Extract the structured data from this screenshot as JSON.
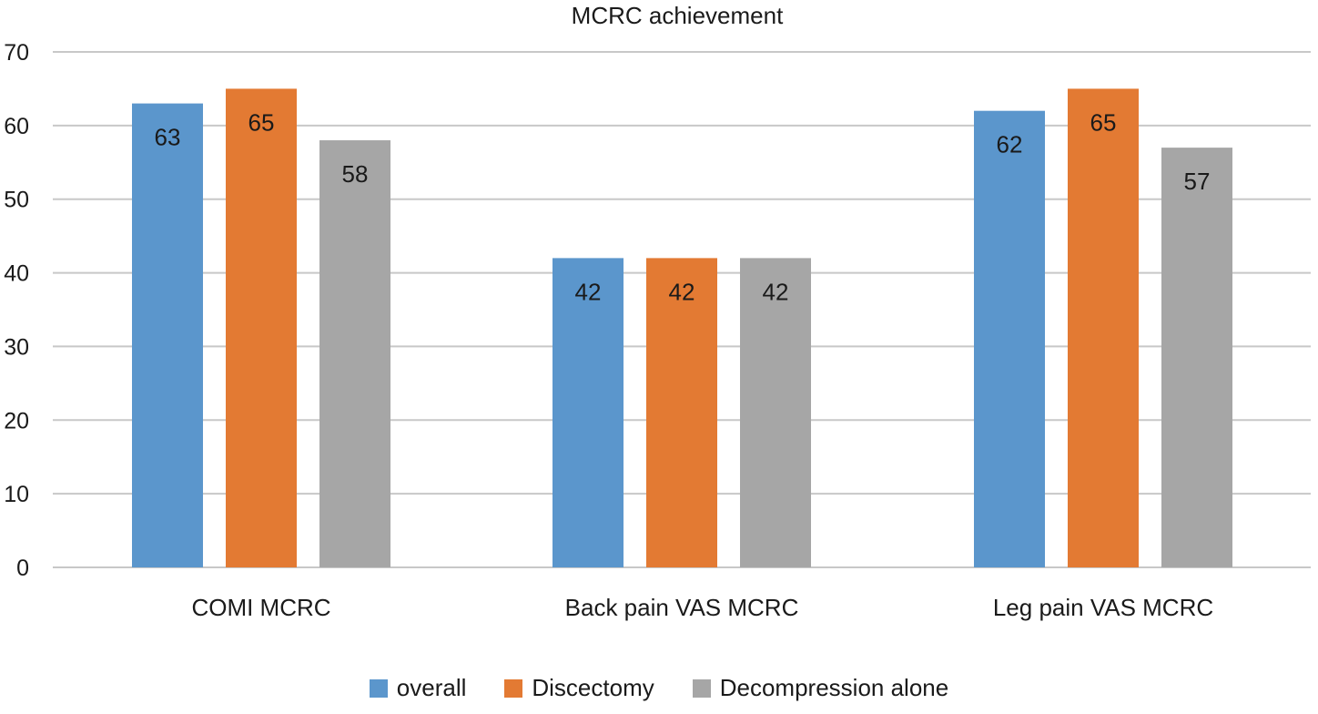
{
  "chart_data": {
    "type": "bar",
    "title": "MCRC achievement",
    "xlabel": "",
    "ylabel": "",
    "categories": [
      "COMI MCRC",
      "Back pain VAS MCRC",
      "Leg pain VAS MCRC"
    ],
    "series": [
      {
        "name": "overall",
        "values": [
          63,
          42,
          62
        ],
        "color": "#5b96cc"
      },
      {
        "name": "Discectomy",
        "values": [
          65,
          42,
          65
        ],
        "color": "#e37a33"
      },
      {
        "name": "Decompression alone",
        "values": [
          58,
          42,
          57
        ],
        "color": "#a6a6a6"
      }
    ],
    "ylim": [
      0,
      70
    ],
    "yticks": [
      0,
      10,
      20,
      30,
      40,
      50,
      60,
      70
    ],
    "grid": true,
    "legend_position": "bottom",
    "data_labels": true,
    "gridline_color": "#c8c8c8"
  }
}
